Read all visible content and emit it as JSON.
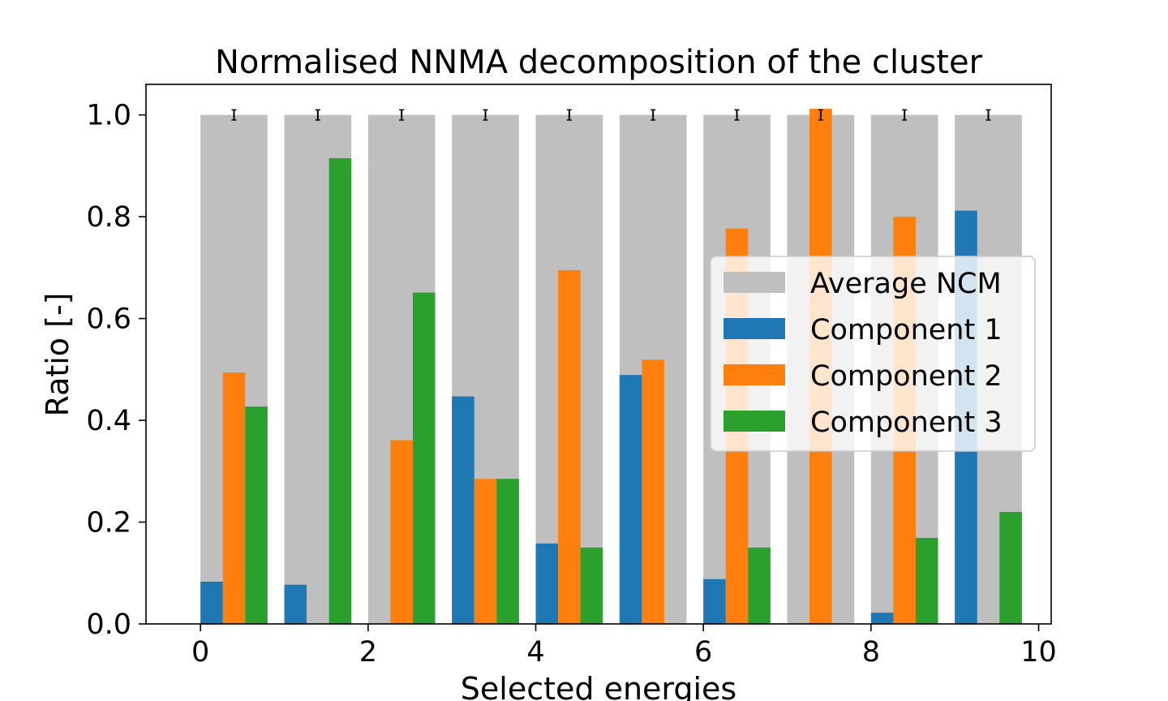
{
  "chart_data": {
    "type": "bar",
    "title": "Normalised NNMA decomposition of the cluster",
    "xlabel": "Selected energies",
    "ylabel": "Ratio [-]",
    "xlim": [
      -0.65,
      10.15
    ],
    "ylim": [
      0.0,
      1.06
    ],
    "x_ticks": [
      0,
      2,
      4,
      6,
      8,
      10
    ],
    "y_ticks": [
      0.0,
      0.2,
      0.4,
      0.6,
      0.8,
      1.0
    ],
    "x_tick_labels": [
      "0",
      "2",
      "4",
      "6",
      "8",
      "10"
    ],
    "y_tick_labels": [
      "0.0",
      "0.2",
      "0.4",
      "0.6",
      "0.8",
      "1.0"
    ],
    "categories": [
      0,
      1,
      2,
      3,
      4,
      5,
      6,
      7,
      8,
      9
    ],
    "grid": false,
    "legend_position": "center-right",
    "series": [
      {
        "name": "Average NCM",
        "color": "#bfbfbf",
        "values": [
          1.0,
          1.0,
          1.0,
          1.0,
          1.0,
          1.0,
          1.0,
          1.0,
          1.0,
          1.0
        ],
        "error": [
          0.01,
          0.01,
          0.01,
          0.01,
          0.01,
          0.01,
          0.01,
          0.01,
          0.01,
          0.01
        ]
      },
      {
        "name": "Component 1",
        "color": "#1f77b4",
        "values": [
          0.083,
          0.077,
          0.0,
          0.447,
          0.158,
          0.489,
          0.088,
          0.0,
          0.022,
          0.812
        ]
      },
      {
        "name": "Component 2",
        "color": "#ff7f0e",
        "values": [
          0.494,
          0.0,
          0.361,
          0.285,
          0.695,
          0.519,
          0.777,
          1.012,
          0.8,
          0.0
        ]
      },
      {
        "name": "Component 3",
        "color": "#2ca02c",
        "values": [
          0.427,
          0.915,
          0.651,
          0.285,
          0.15,
          0.0,
          0.15,
          0.0,
          0.169,
          0.22
        ]
      }
    ]
  }
}
